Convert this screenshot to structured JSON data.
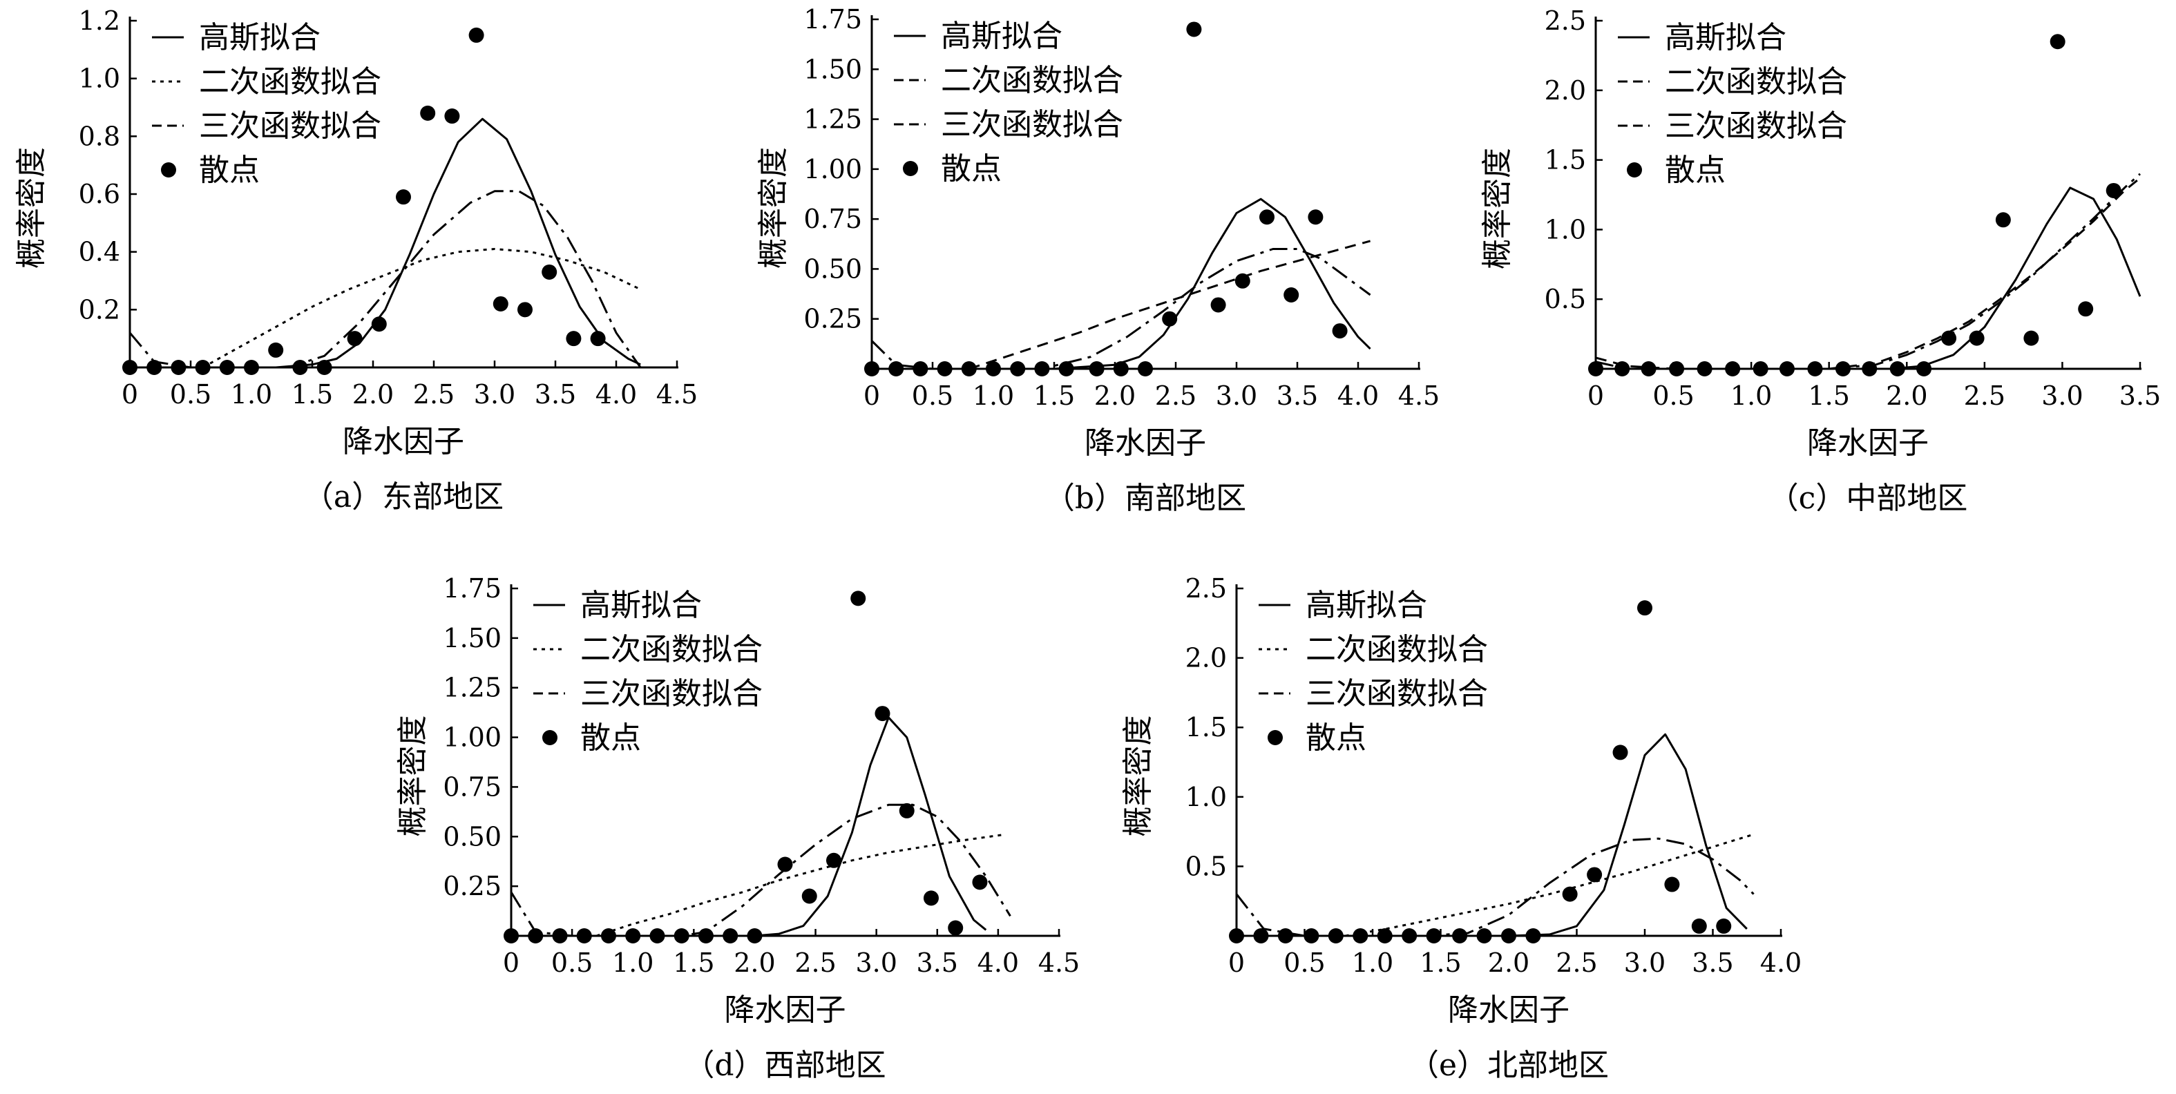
{
  "chart_data": [
    {
      "type": "line",
      "caption": "（a）东部地区",
      "xlabel": "降水因子",
      "ylabel": "概率密度",
      "xlim": [
        0,
        4.5
      ],
      "ylim": [
        0,
        1.2
      ],
      "xticks": [
        "0",
        "0.5",
        "1.0",
        "1.5",
        "2.0",
        "2.5",
        "3.0",
        "3.5",
        "4.0",
        "4.5"
      ],
      "yticks": [
        "0.2",
        "0.4",
        "0.6",
        "0.8",
        "1.0",
        "1.2"
      ],
      "legend": [
        "高斯拟合",
        "二次函数拟合",
        "三次函数拟合",
        "散点"
      ],
      "series": [
        {
          "name": "高斯拟合",
          "style": "solid",
          "x": [
            0,
            0.3,
            0.6,
            0.9,
            1.2,
            1.5,
            1.7,
            1.9,
            2.1,
            2.3,
            2.5,
            2.7,
            2.9,
            3.1,
            3.3,
            3.5,
            3.7,
            3.9,
            4.1,
            4.2
          ],
          "y": [
            0,
            0,
            0,
            0,
            0,
            0.01,
            0.03,
            0.09,
            0.2,
            0.39,
            0.6,
            0.78,
            0.86,
            0.79,
            0.61,
            0.39,
            0.21,
            0.09,
            0.03,
            0.01
          ]
        },
        {
          "name": "二次函数拟合",
          "style": "dotted",
          "x": [
            0.6,
            0.9,
            1.2,
            1.5,
            1.8,
            2.1,
            2.4,
            2.7,
            3.0,
            3.3,
            3.6,
            3.9,
            4.2
          ],
          "y": [
            0,
            0.07,
            0.14,
            0.21,
            0.27,
            0.32,
            0.37,
            0.4,
            0.41,
            0.4,
            0.37,
            0.33,
            0.27
          ]
        },
        {
          "name": "三次函数拟合",
          "style": "dashdot",
          "x": [
            0,
            0.2,
            0.5,
            1.0,
            1.3,
            1.6,
            1.9,
            2.2,
            2.5,
            2.8,
            3.0,
            3.2,
            3.4,
            3.6,
            3.8,
            4.0,
            4.2
          ],
          "y": [
            0.12,
            0.02,
            0,
            0,
            0,
            0.04,
            0.16,
            0.31,
            0.46,
            0.57,
            0.61,
            0.61,
            0.56,
            0.45,
            0.3,
            0.12,
            0
          ]
        }
      ],
      "scatter": {
        "name": "散点",
        "x": [
          0,
          0.2,
          0.4,
          0.6,
          0.8,
          1.0,
          1.2,
          1.4,
          1.6,
          1.85,
          2.05,
          2.25,
          2.45,
          2.65,
          2.85,
          3.05,
          3.25,
          3.45,
          3.65,
          3.85
        ],
        "y": [
          0,
          0,
          0,
          0,
          0,
          0,
          0.06,
          0,
          0,
          0.1,
          0.15,
          0.59,
          0.88,
          0.87,
          1.15,
          0.22,
          0.2,
          0.33,
          0.1,
          0.1
        ]
      }
    },
    {
      "type": "line",
      "caption": "（b）南部地区",
      "xlabel": "降水因子",
      "ylabel": "概率密度",
      "xlim": [
        0,
        4.5
      ],
      "ylim": [
        0,
        1.75
      ],
      "xticks": [
        "0",
        "0.5",
        "1.0",
        "1.5",
        "2.0",
        "2.5",
        "3.0",
        "3.5",
        "4.0",
        "4.5"
      ],
      "yticks": [
        "0.25",
        "0.50",
        "0.75",
        "1.00",
        "1.25",
        "1.50",
        "1.75"
      ],
      "legend": [
        "高斯拟合",
        "二次函数拟合",
        "三次函数拟合",
        "散点"
      ],
      "series": [
        {
          "name": "高斯拟合",
          "style": "solid",
          "x": [
            0,
            0.5,
            1.0,
            1.5,
            2.0,
            2.2,
            2.4,
            2.6,
            2.8,
            3.0,
            3.2,
            3.4,
            3.6,
            3.8,
            4.0,
            4.1
          ],
          "y": [
            0,
            0,
            0,
            0,
            0.02,
            0.06,
            0.17,
            0.35,
            0.58,
            0.78,
            0.85,
            0.76,
            0.55,
            0.33,
            0.16,
            0.1
          ]
        },
        {
          "name": "二次函数拟合",
          "style": "dashed",
          "x": [
            0.8,
            1.1,
            1.4,
            1.7,
            2.0,
            2.3,
            2.6,
            2.9,
            3.2,
            3.5,
            3.8,
            4.1
          ],
          "y": [
            0,
            0.06,
            0.12,
            0.18,
            0.25,
            0.31,
            0.37,
            0.43,
            0.49,
            0.54,
            0.59,
            0.64
          ]
        },
        {
          "name": "三次函数拟合",
          "style": "dashdot",
          "x": [
            0,
            0.2,
            0.5,
            1.0,
            1.4,
            1.8,
            2.1,
            2.4,
            2.7,
            3.0,
            3.3,
            3.5,
            3.7,
            3.9,
            4.1
          ],
          "y": [
            0.14,
            0.02,
            0,
            0,
            0,
            0.06,
            0.16,
            0.29,
            0.43,
            0.54,
            0.6,
            0.6,
            0.55,
            0.46,
            0.37
          ]
        }
      ],
      "scatter": {
        "name": "散点",
        "x": [
          0,
          0.2,
          0.4,
          0.6,
          0.8,
          1.0,
          1.2,
          1.4,
          1.6,
          1.85,
          2.05,
          2.25,
          2.45,
          2.65,
          2.85,
          3.05,
          3.25,
          3.45,
          3.65,
          3.85
        ],
        "y": [
          0,
          0,
          0,
          0,
          0,
          0,
          0,
          0,
          0,
          0,
          0,
          0,
          0.25,
          1.7,
          0.32,
          0.44,
          0.76,
          0.37,
          0.76,
          0.19
        ]
      }
    },
    {
      "type": "line",
      "caption": "（c）中部地区",
      "xlabel": "降水因子",
      "ylabel": "概率密度",
      "xlim": [
        0,
        3.5
      ],
      "ylim": [
        0,
        2.5
      ],
      "xticks": [
        "0",
        "0.5",
        "1.0",
        "1.5",
        "2.0",
        "2.5",
        "3.0",
        "3.5"
      ],
      "yticks": [
        "0.5",
        "1.0",
        "1.5",
        "2.0",
        "2.5"
      ],
      "legend": [
        "高斯拟合",
        "二次函数拟合",
        "三次函数拟合",
        "散点"
      ],
      "series": [
        {
          "name": "高斯拟合",
          "style": "solid",
          "x": [
            0,
            0.5,
            1.0,
            1.5,
            1.9,
            2.1,
            2.3,
            2.5,
            2.7,
            2.9,
            3.05,
            3.2,
            3.35,
            3.5
          ],
          "y": [
            0,
            0,
            0,
            0,
            0,
            0.02,
            0.1,
            0.3,
            0.64,
            1.04,
            1.3,
            1.22,
            0.93,
            0.52
          ]
        },
        {
          "name": "二次函数拟合",
          "style": "dashed",
          "x": [
            0,
            0.2,
            0.5,
            1.0,
            1.5,
            1.8,
            2.0,
            2.2,
            2.4,
            2.6,
            2.8,
            3.0,
            3.2,
            3.4,
            3.5
          ],
          "y": [
            0.08,
            0.02,
            0,
            0,
            0,
            0.04,
            0.12,
            0.22,
            0.34,
            0.5,
            0.67,
            0.86,
            1.06,
            1.28,
            1.37
          ]
        },
        {
          "name": "三次函数拟合",
          "style": "dashdot",
          "x": [
            0,
            0.2,
            0.5,
            1.0,
            1.5,
            1.8,
            2.0,
            2.2,
            2.4,
            2.6,
            2.8,
            3.0,
            3.2,
            3.4,
            3.5
          ],
          "y": [
            0.05,
            0,
            0,
            0,
            0,
            0.03,
            0.1,
            0.2,
            0.32,
            0.48,
            0.66,
            0.87,
            1.08,
            1.3,
            1.4
          ]
        }
      ],
      "scatter": {
        "name": "散点",
        "x": [
          0,
          0.17,
          0.34,
          0.52,
          0.7,
          0.88,
          1.06,
          1.23,
          1.41,
          1.59,
          1.76,
          1.94,
          2.11,
          2.27,
          2.45,
          2.62,
          2.8,
          2.97,
          3.15,
          3.33
        ],
        "y": [
          0,
          0,
          0,
          0,
          0,
          0,
          0,
          0,
          0,
          0,
          0,
          0,
          0,
          0.22,
          0.22,
          1.07,
          0.22,
          2.35,
          0.43,
          1.28
        ]
      }
    },
    {
      "type": "line",
      "caption": "（d）西部地区",
      "xlabel": "降水因子",
      "ylabel": "概率密度",
      "xlim": [
        0,
        4.5
      ],
      "ylim": [
        0,
        1.75
      ],
      "xticks": [
        "0",
        "0.5",
        "1.0",
        "1.5",
        "2.0",
        "2.5",
        "3.0",
        "3.5",
        "4.0",
        "4.5"
      ],
      "yticks": [
        "0.25",
        "0.50",
        "0.75",
        "1.00",
        "1.25",
        "1.50",
        "1.75"
      ],
      "legend": [
        "高斯拟合",
        "二次函数拟合",
        "三次函数拟合",
        "散点"
      ],
      "series": [
        {
          "name": "高斯拟合",
          "style": "solid",
          "x": [
            0,
            0.5,
            1.0,
            1.5,
            2.0,
            2.2,
            2.4,
            2.6,
            2.8,
            2.95,
            3.1,
            3.25,
            3.4,
            3.6,
            3.8,
            3.9
          ],
          "y": [
            0,
            0,
            0,
            0,
            0,
            0.01,
            0.05,
            0.2,
            0.52,
            0.86,
            1.1,
            1.0,
            0.71,
            0.3,
            0.08,
            0.03
          ]
        },
        {
          "name": "二次函数拟合",
          "style": "dotted",
          "x": [
            0.7,
            1.0,
            1.3,
            1.6,
            1.9,
            2.2,
            2.5,
            2.8,
            3.1,
            3.4,
            3.7,
            4.05
          ],
          "y": [
            0,
            0.06,
            0.11,
            0.17,
            0.22,
            0.28,
            0.33,
            0.38,
            0.42,
            0.45,
            0.48,
            0.51
          ]
        },
        {
          "name": "三次函数拟合",
          "style": "dashdot",
          "x": [
            0,
            0.2,
            0.5,
            1.0,
            1.4,
            1.6,
            1.9,
            2.2,
            2.5,
            2.8,
            3.1,
            3.3,
            3.5,
            3.7,
            3.9,
            4.1
          ],
          "y": [
            0.22,
            0.02,
            0,
            0,
            0,
            0.02,
            0.15,
            0.31,
            0.46,
            0.59,
            0.66,
            0.66,
            0.6,
            0.47,
            0.3,
            0.1
          ]
        }
      ],
      "scatter": {
        "name": "散点",
        "x": [
          0,
          0.2,
          0.4,
          0.6,
          0.8,
          1.0,
          1.2,
          1.4,
          1.6,
          1.8,
          2.0,
          2.25,
          2.45,
          2.65,
          2.85,
          3.05,
          3.25,
          3.45,
          3.65,
          3.85
        ],
        "y": [
          0,
          0,
          0,
          0,
          0,
          0,
          0,
          0,
          0,
          0,
          0,
          0.36,
          0.2,
          0.38,
          1.7,
          1.12,
          0.63,
          0.19,
          0.04,
          0.27
        ]
      }
    },
    {
      "type": "line",
      "caption": "（e）北部地区",
      "xlabel": "降水因子",
      "ylabel": "概率密度",
      "xlim": [
        0,
        4.0
      ],
      "ylim": [
        0,
        2.5
      ],
      "xticks": [
        "0",
        "0.5",
        "1.0",
        "1.5",
        "2.0",
        "2.5",
        "3.0",
        "3.5",
        "4.0"
      ],
      "yticks": [
        "0.5",
        "1.0",
        "1.5",
        "2.0",
        "2.5"
      ],
      "legend": [
        "高斯拟合",
        "二次函数拟合",
        "三次函数拟合",
        "散点"
      ],
      "series": [
        {
          "name": "高斯拟合",
          "style": "solid",
          "x": [
            0,
            0.5,
            1.0,
            1.5,
            2.0,
            2.3,
            2.5,
            2.7,
            2.85,
            3.0,
            3.15,
            3.3,
            3.45,
            3.6,
            3.75
          ],
          "y": [
            0,
            0,
            0,
            0,
            0,
            0.01,
            0.07,
            0.33,
            0.8,
            1.3,
            1.45,
            1.2,
            0.65,
            0.2,
            0.05
          ]
        },
        {
          "name": "二次函数拟合",
          "style": "dotted",
          "x": [
            0.8,
            1.1,
            1.4,
            1.7,
            2.0,
            2.3,
            2.6,
            2.9,
            3.2,
            3.5,
            3.8
          ],
          "y": [
            0,
            0.05,
            0.11,
            0.17,
            0.23,
            0.3,
            0.38,
            0.46,
            0.55,
            0.64,
            0.73
          ]
        },
        {
          "name": "三次函数拟合",
          "style": "dashdot",
          "x": [
            0,
            0.2,
            0.5,
            1.0,
            1.4,
            1.7,
            2.0,
            2.3,
            2.6,
            2.9,
            3.1,
            3.3,
            3.5,
            3.7,
            3.8
          ],
          "y": [
            0.3,
            0.05,
            0,
            0,
            0,
            0.02,
            0.15,
            0.38,
            0.58,
            0.69,
            0.7,
            0.66,
            0.55,
            0.4,
            0.3
          ]
        }
      ],
      "scatter": {
        "name": "散点",
        "x": [
          0,
          0.18,
          0.36,
          0.55,
          0.73,
          0.91,
          1.09,
          1.27,
          1.45,
          1.64,
          1.82,
          2.0,
          2.18,
          2.45,
          2.63,
          2.82,
          3.0,
          3.2,
          3.4,
          3.58
        ],
        "y": [
          0,
          0,
          0,
          0,
          0,
          0,
          0,
          0,
          0,
          0,
          0,
          0,
          0,
          0.3,
          0.44,
          1.32,
          2.36,
          0.37,
          0.07,
          0.07
        ]
      }
    }
  ]
}
